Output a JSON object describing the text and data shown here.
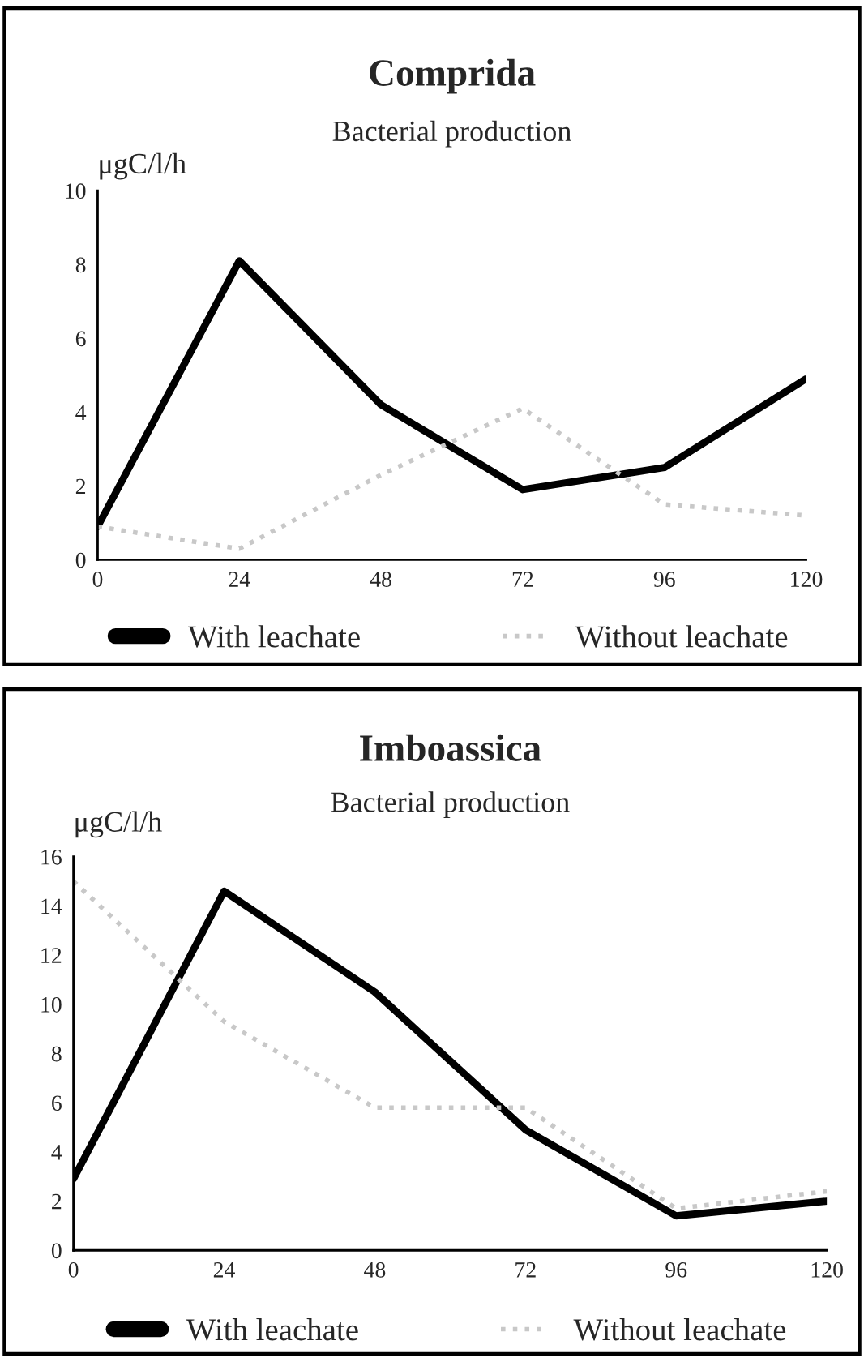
{
  "chart_data": [
    {
      "type": "line",
      "title": "Comprida",
      "subtitle": "Bacterial production",
      "ylabel": "μgC/l/h",
      "x": [
        0,
        24,
        48,
        72,
        96,
        120
      ],
      "xlim": [
        0,
        120
      ],
      "xticks": [
        0,
        24,
        48,
        72,
        96,
        120
      ],
      "ylim": [
        0,
        10
      ],
      "yticks": [
        0,
        2,
        4,
        6,
        8,
        10
      ],
      "grid": false,
      "legend": "bottom",
      "series": [
        {
          "name": "With leachate",
          "color": "#000000",
          "line_style": "solid",
          "values": [
            0.9,
            8.1,
            4.2,
            1.9,
            2.5,
            4.9
          ]
        },
        {
          "name": "Without leachate",
          "color": "#c8c8c8",
          "line_style": "dotted",
          "values": [
            0.9,
            0.3,
            2.3,
            4.1,
            1.5,
            1.2
          ]
        }
      ]
    },
    {
      "type": "line",
      "title": "Imboassica",
      "subtitle": "Bacterial production",
      "ylabel": "μgC/l/h",
      "x": [
        0,
        24,
        48,
        72,
        96,
        120
      ],
      "xlim": [
        0,
        120
      ],
      "xticks": [
        0,
        24,
        48,
        72,
        96,
        120
      ],
      "ylim": [
        0,
        16
      ],
      "yticks": [
        0,
        2,
        4,
        6,
        8,
        10,
        12,
        14,
        16
      ],
      "grid": false,
      "legend": "bottom",
      "series": [
        {
          "name": "With leachate",
          "color": "#000000",
          "line_style": "solid",
          "values": [
            2.9,
            14.6,
            10.5,
            4.9,
            1.4,
            2.0
          ]
        },
        {
          "name": "Without leachate",
          "color": "#c8c8c8",
          "line_style": "dotted",
          "values": [
            15.0,
            9.3,
            5.8,
            5.8,
            1.7,
            2.4
          ]
        }
      ]
    }
  ]
}
